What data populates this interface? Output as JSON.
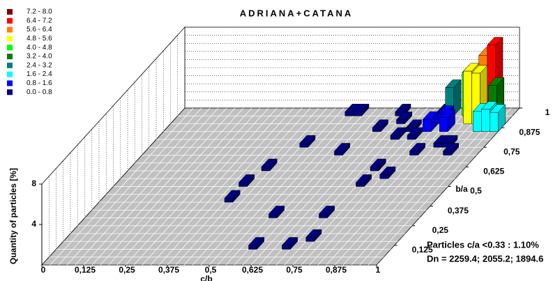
{
  "chart_data": {
    "type": "bar3d",
    "title": "ADRIANA+CATANA",
    "legend": [
      {
        "label": "7.2 - 8.0",
        "range": [
          7.2,
          8.0
        ],
        "color": "#800000"
      },
      {
        "label": "6.4 - 7.2",
        "range": [
          6.4,
          7.2
        ],
        "color": "#ff0000"
      },
      {
        "label": "5.6 - 6.4",
        "range": [
          5.6,
          6.4
        ],
        "color": "#ff8000"
      },
      {
        "label": "4.8 - 5.6",
        "range": [
          4.8,
          5.6
        ],
        "color": "#ffff00"
      },
      {
        "label": "4.0 - 4.8",
        "range": [
          4.0,
          4.8
        ],
        "color": "#00ff00"
      },
      {
        "label": "3.2 - 4.0",
        "range": [
          3.2,
          4.0
        ],
        "color": "#008000"
      },
      {
        "label": "2.4 - 3.2",
        "range": [
          2.4,
          3.2
        ],
        "color": "#008080"
      },
      {
        "label": "1.6 - 2.4",
        "range": [
          1.6,
          2.4
        ],
        "color": "#00ffff"
      },
      {
        "label": "0.8 - 1.6",
        "range": [
          0.8,
          1.6
        ],
        "color": "#0000ff"
      },
      {
        "label": "0.0 - 0.8",
        "range": [
          0.0,
          0.8
        ],
        "color": "#000080"
      }
    ],
    "x_label": "c/b",
    "y_label": "b/a",
    "z_label": "Quantity of particles [%]",
    "xlim": [
      0,
      1
    ],
    "ylim": [
      0,
      1
    ],
    "zlim": [
      0,
      8
    ],
    "xticks": [
      0,
      {
        "value": 0.125,
        "label": "0,125"
      },
      {
        "value": 0.25,
        "label": "0,25"
      },
      {
        "value": 0.375,
        "label": "0,375"
      },
      {
        "value": 0.5,
        "label": "0,5"
      },
      {
        "value": 0.625,
        "label": "0,625"
      },
      {
        "value": 0.75,
        "label": "0,75"
      },
      {
        "value": 0.875,
        "label": "0,875"
      },
      1
    ],
    "yticks": [
      {
        "value": 0.125,
        "label": "0,125"
      },
      {
        "value": 0.25,
        "label": "0,25"
      },
      {
        "value": 0.375,
        "label": "0,375"
      },
      {
        "value": 0.5,
        "label": "0,5"
      },
      {
        "value": 0.625,
        "label": "0,625"
      },
      {
        "value": 0.75,
        "label": "0,75"
      },
      {
        "value": 0.875,
        "label": "0,875"
      },
      1
    ],
    "zticks": [
      4,
      8
    ],
    "x": [
      0.925,
      0.9,
      0.9,
      0.875,
      0.95,
      0.85,
      0.8,
      0.925,
      0.95,
      0.975,
      0.775,
      0.8,
      0.825,
      0.5,
      0.525,
      0.65,
      0.775,
      0.7,
      0.725,
      0.75,
      0.85,
      0.9,
      0.8,
      0.875,
      0.725,
      0.725,
      0.775,
      0.575,
      0.45,
      0.4,
      0.375,
      0.375,
      0.55,
      0.7,
      0.725,
      0.675,
      0.575,
      0.625,
      0.675
    ],
    "y": [
      0.95,
      0.95,
      0.9,
      0.9,
      0.9,
      0.95,
      0.95,
      0.85,
      0.85,
      0.85,
      0.85,
      0.9,
      0.85,
      0.95,
      0.95,
      0.95,
      0.95,
      0.8,
      0.85,
      0.8,
      0.75,
      0.7,
      0.7,
      0.75,
      0.6,
      0.5,
      0.55,
      0.7,
      0.75,
      0.6,
      0.5,
      0.4,
      0.3,
      0.3,
      0.15,
      0.1,
      0.1,
      0.85,
      0.9
    ],
    "values": [
      7.0,
      6.0,
      5.0,
      5.2,
      3.8,
      4.3,
      2.8,
      2.0,
      2.2,
      1.9,
      1.2,
      1.0,
      1.4,
      0.4,
      0.4,
      0.4,
      0.4,
      0.4,
      0.4,
      0.4,
      0.4,
      0.4,
      0.4,
      0.4,
      0.4,
      0.4,
      0.4,
      0.4,
      0.4,
      0.4,
      0.4,
      0.4,
      0.4,
      0.4,
      0.4,
      0.4,
      0.4,
      0.4,
      0.4
    ],
    "annotations": [
      "Particles c/a <0.33 : 1.10%",
      "Dn = 2259.4; 2055.2; 1894.6"
    ]
  }
}
